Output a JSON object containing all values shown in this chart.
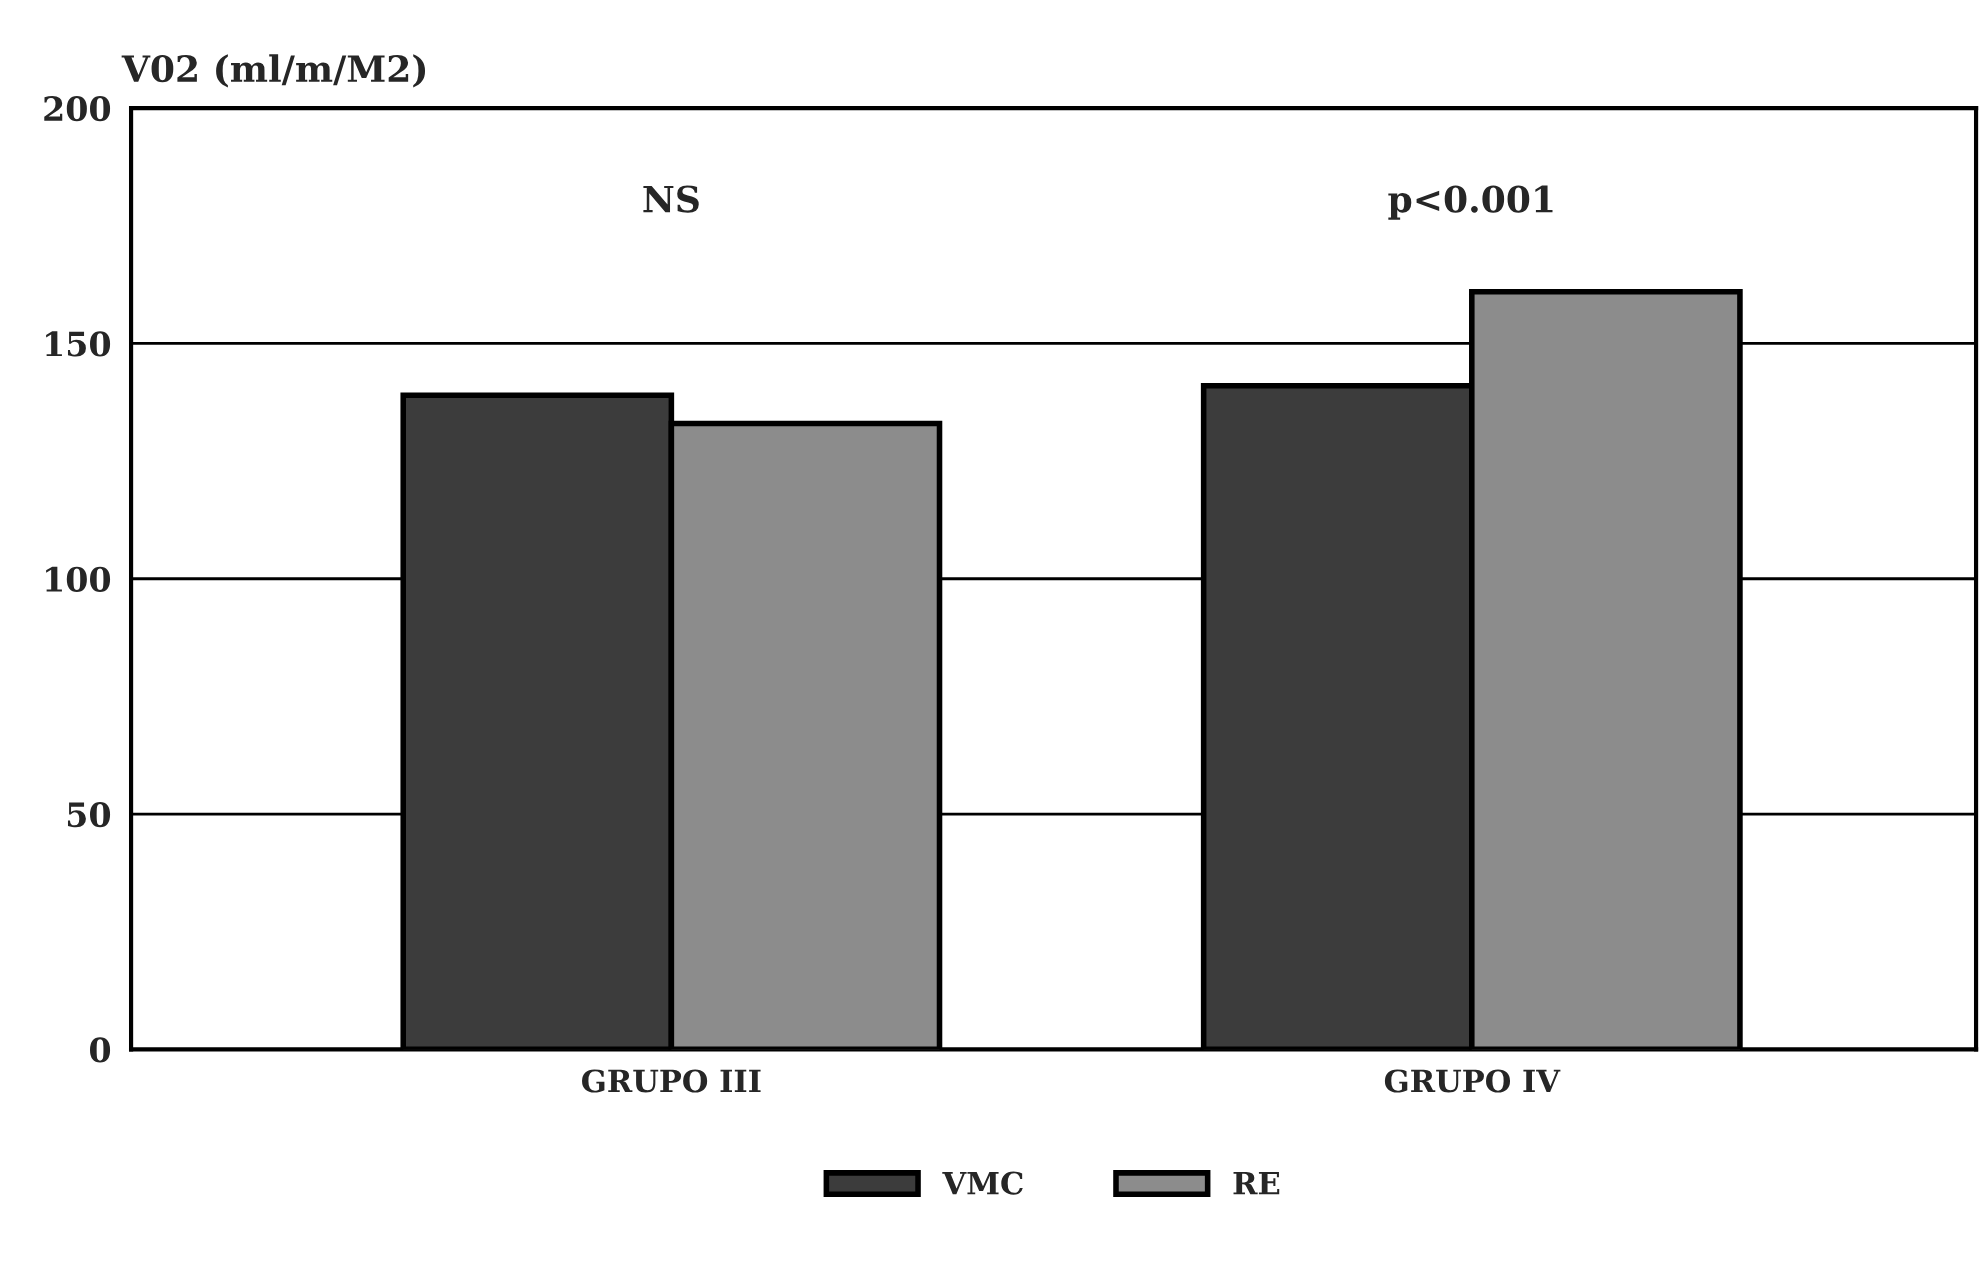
{
  "chart_data": {
    "type": "bar",
    "ylabel": "V02 (ml/m/M2)",
    "categories": [
      "GRUPO III",
      "GRUPO IV"
    ],
    "series": [
      {
        "name": "VMC",
        "color": "#3c3c3c",
        "values": [
          139,
          141
        ]
      },
      {
        "name": "RE",
        "color": "#8c8c8c",
        "values": [
          133,
          161
        ]
      }
    ],
    "ylim": [
      0,
      200
    ],
    "yticks": [
      0,
      50,
      100,
      150,
      200
    ],
    "grid": "y",
    "legend": "bottom",
    "annotations": [
      "NS",
      "p<0.001"
    ]
  }
}
